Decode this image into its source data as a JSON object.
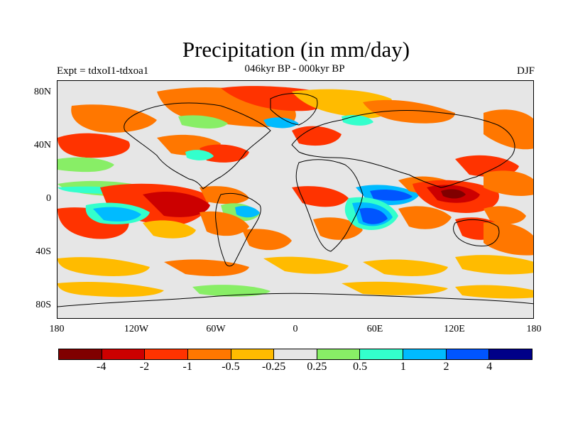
{
  "title": "Precipitation (in mm/day)",
  "subtitle": "046kyr BP - 000kyr BP",
  "left_label": "Expt = tdxoI1-tdxoa1",
  "right_label": "DJF",
  "y_axis_labels": [
    "80N",
    "40N",
    "0",
    "40S",
    "80S"
  ],
  "x_axis_labels": [
    "180",
    "120W",
    "60W",
    "0",
    "60E",
    "120E",
    "180"
  ],
  "colorbar": {
    "colors": [
      "#800000",
      "#cc0000",
      "#ff3300",
      "#ff7700",
      "#ffbb00",
      "#e6e6e6",
      "#88ee66",
      "#33ffcc",
      "#00bbff",
      "#0055ff",
      "#000088"
    ],
    "labels": [
      "-4",
      "-2",
      "-1",
      "-0.5",
      "-0.25",
      "0.25",
      "0.5",
      "1",
      "2",
      "4"
    ]
  }
}
